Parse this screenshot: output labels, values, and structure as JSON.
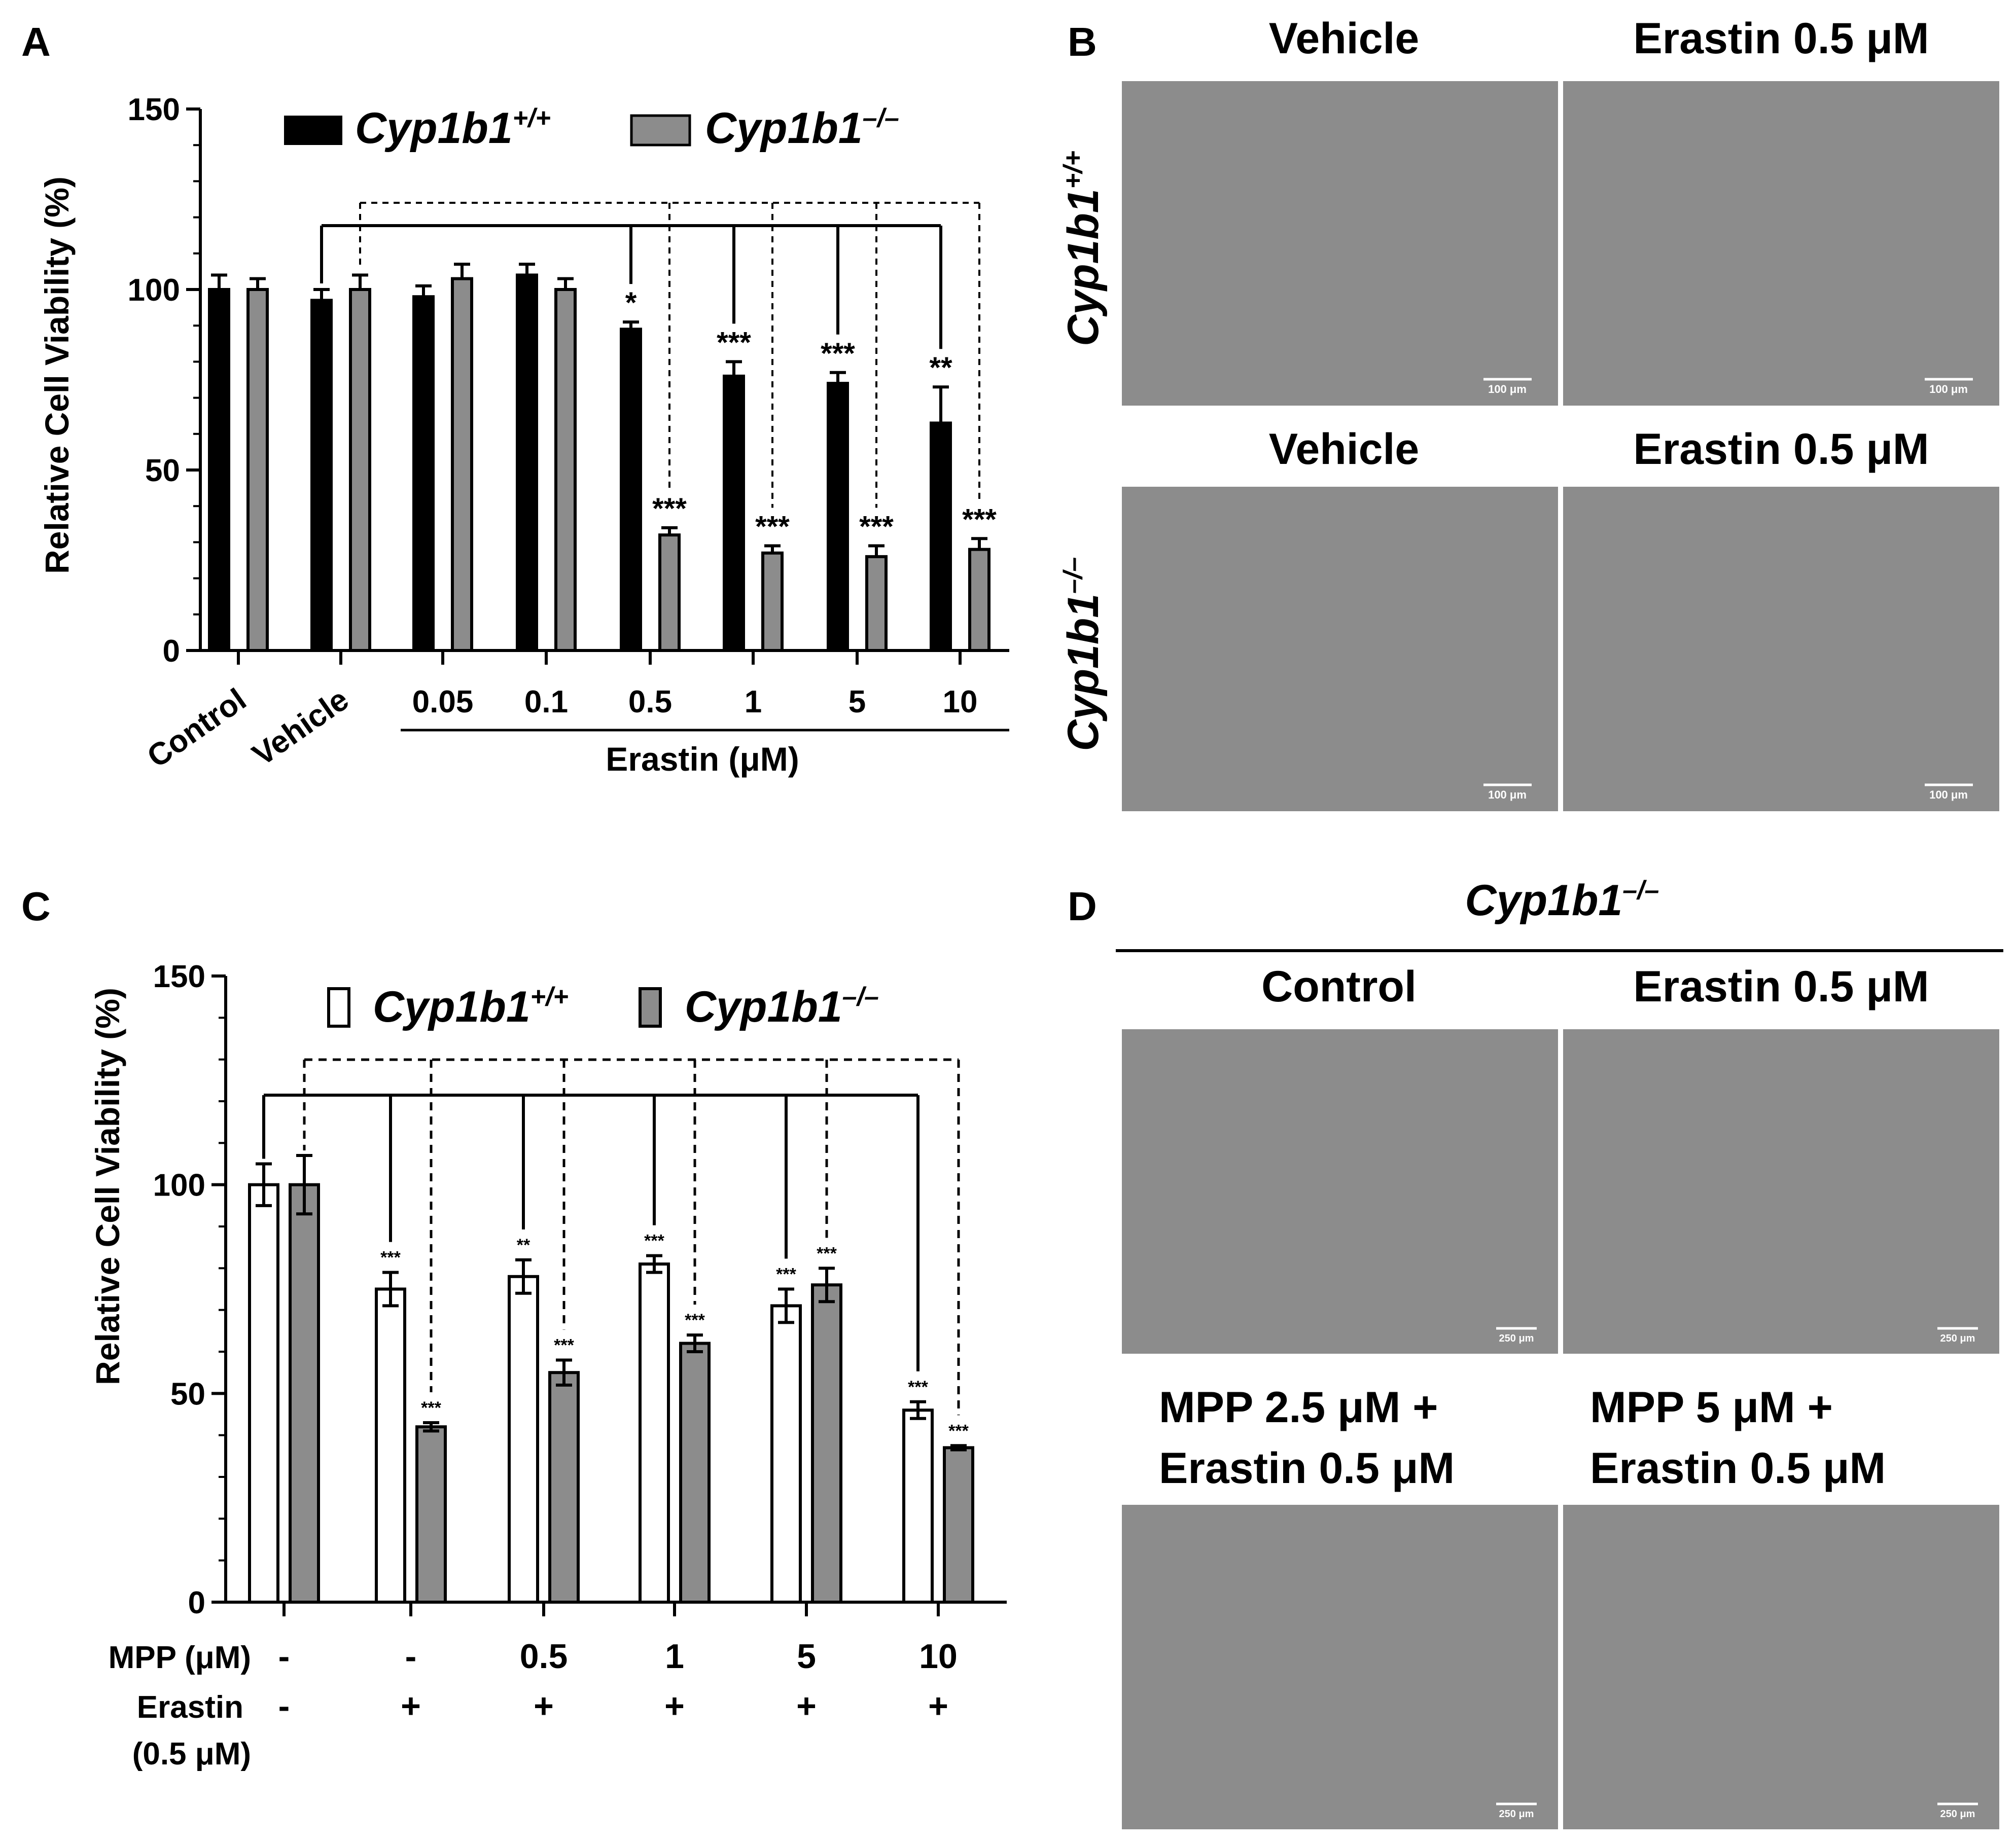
{
  "panel_letters": {
    "a": "A",
    "b": "B",
    "c": "C",
    "d": "D"
  },
  "genotype_labels": {
    "wt_base": "Cyp1b1",
    "wt_sup": "+/+",
    "ko_base": "Cyp1b1",
    "ko_sup": "–/–"
  },
  "colors": {
    "wt_a": "#000000",
    "ko": "#8c8c8c",
    "wt_c": "#ffffff",
    "micrograph": "#8c8c8c"
  },
  "chart_data": [
    {
      "panel": "A",
      "type": "bar",
      "ylabel": "Relative Cell Viability (%)",
      "ylim": [
        0,
        150
      ],
      "yticks": [
        "0",
        "50",
        "100",
        "150"
      ],
      "categories": [
        "Control",
        "Vehicle",
        "0.05",
        "0.1",
        "0.5",
        "1",
        "5",
        "10"
      ],
      "group_label": "Erastin (μM)",
      "legend_position": "top",
      "series": [
        {
          "name": "Cyp1b1+/+",
          "values": [
            100,
            97,
            98,
            104,
            89,
            76,
            74,
            63
          ],
          "errors": [
            4,
            3,
            3,
            3,
            2,
            4,
            3,
            10
          ],
          "significance": [
            "",
            "",
            "",
            "",
            "*",
            "***",
            "***",
            "**"
          ]
        },
        {
          "name": "Cyp1b1–/–",
          "values": [
            100,
            100,
            103,
            100,
            32,
            27,
            26,
            28
          ],
          "errors": [
            3,
            4,
            4,
            3,
            2,
            2,
            3,
            3
          ],
          "significance": [
            "",
            "",
            "",
            "",
            "***",
            "***",
            "***",
            "***"
          ]
        }
      ]
    },
    {
      "panel": "C",
      "type": "bar",
      "ylabel": "Relative Cell Viability (%)",
      "ylim": [
        0,
        150
      ],
      "yticks": [
        "0",
        "50",
        "100",
        "150"
      ],
      "row_labels": {
        "mpp": "MPP (μM)",
        "erastin": "Erastin",
        "erastin_conc": "(0.5 μM)"
      },
      "mpp": [
        "-",
        "-",
        "0.5",
        "1",
        "5",
        "10"
      ],
      "erastin": [
        "-",
        "+",
        "+",
        "+",
        "+",
        "+"
      ],
      "legend_position": "top",
      "series": [
        {
          "name": "Cyp1b1+/+",
          "values": [
            100,
            75,
            78,
            81,
            71,
            46
          ],
          "errors": [
            5,
            4,
            4,
            2,
            4,
            2
          ],
          "significance": [
            "",
            "***",
            "**",
            "***",
            "***",
            "***"
          ]
        },
        {
          "name": "Cyp1b1–/–",
          "values": [
            100,
            42,
            55,
            62,
            76,
            37
          ],
          "errors": [
            7,
            1,
            3,
            2,
            4,
            0.5
          ],
          "significance": [
            "",
            "***",
            "***",
            "***",
            "***",
            "***"
          ]
        }
      ]
    }
  ],
  "panel_b": {
    "col_labels": [
      "Vehicle",
      "Erastin 0.5 μM"
    ],
    "row2_col_labels": [
      "Vehicle",
      "Erastin 0.5 μM"
    ],
    "scale_bar": "100 μm"
  },
  "panel_d": {
    "title_base": "Cyp1b1",
    "title_sup": "–/–",
    "col_labels": [
      "Control",
      "Erastin 0.5 μM"
    ],
    "row2_labels": [
      [
        "MPP 2.5 μM +",
        "Erastin 0.5 μM"
      ],
      [
        "MPP 5 μM +",
        "Erastin 0.5 μM"
      ]
    ],
    "scale_bar": "250 μm"
  }
}
